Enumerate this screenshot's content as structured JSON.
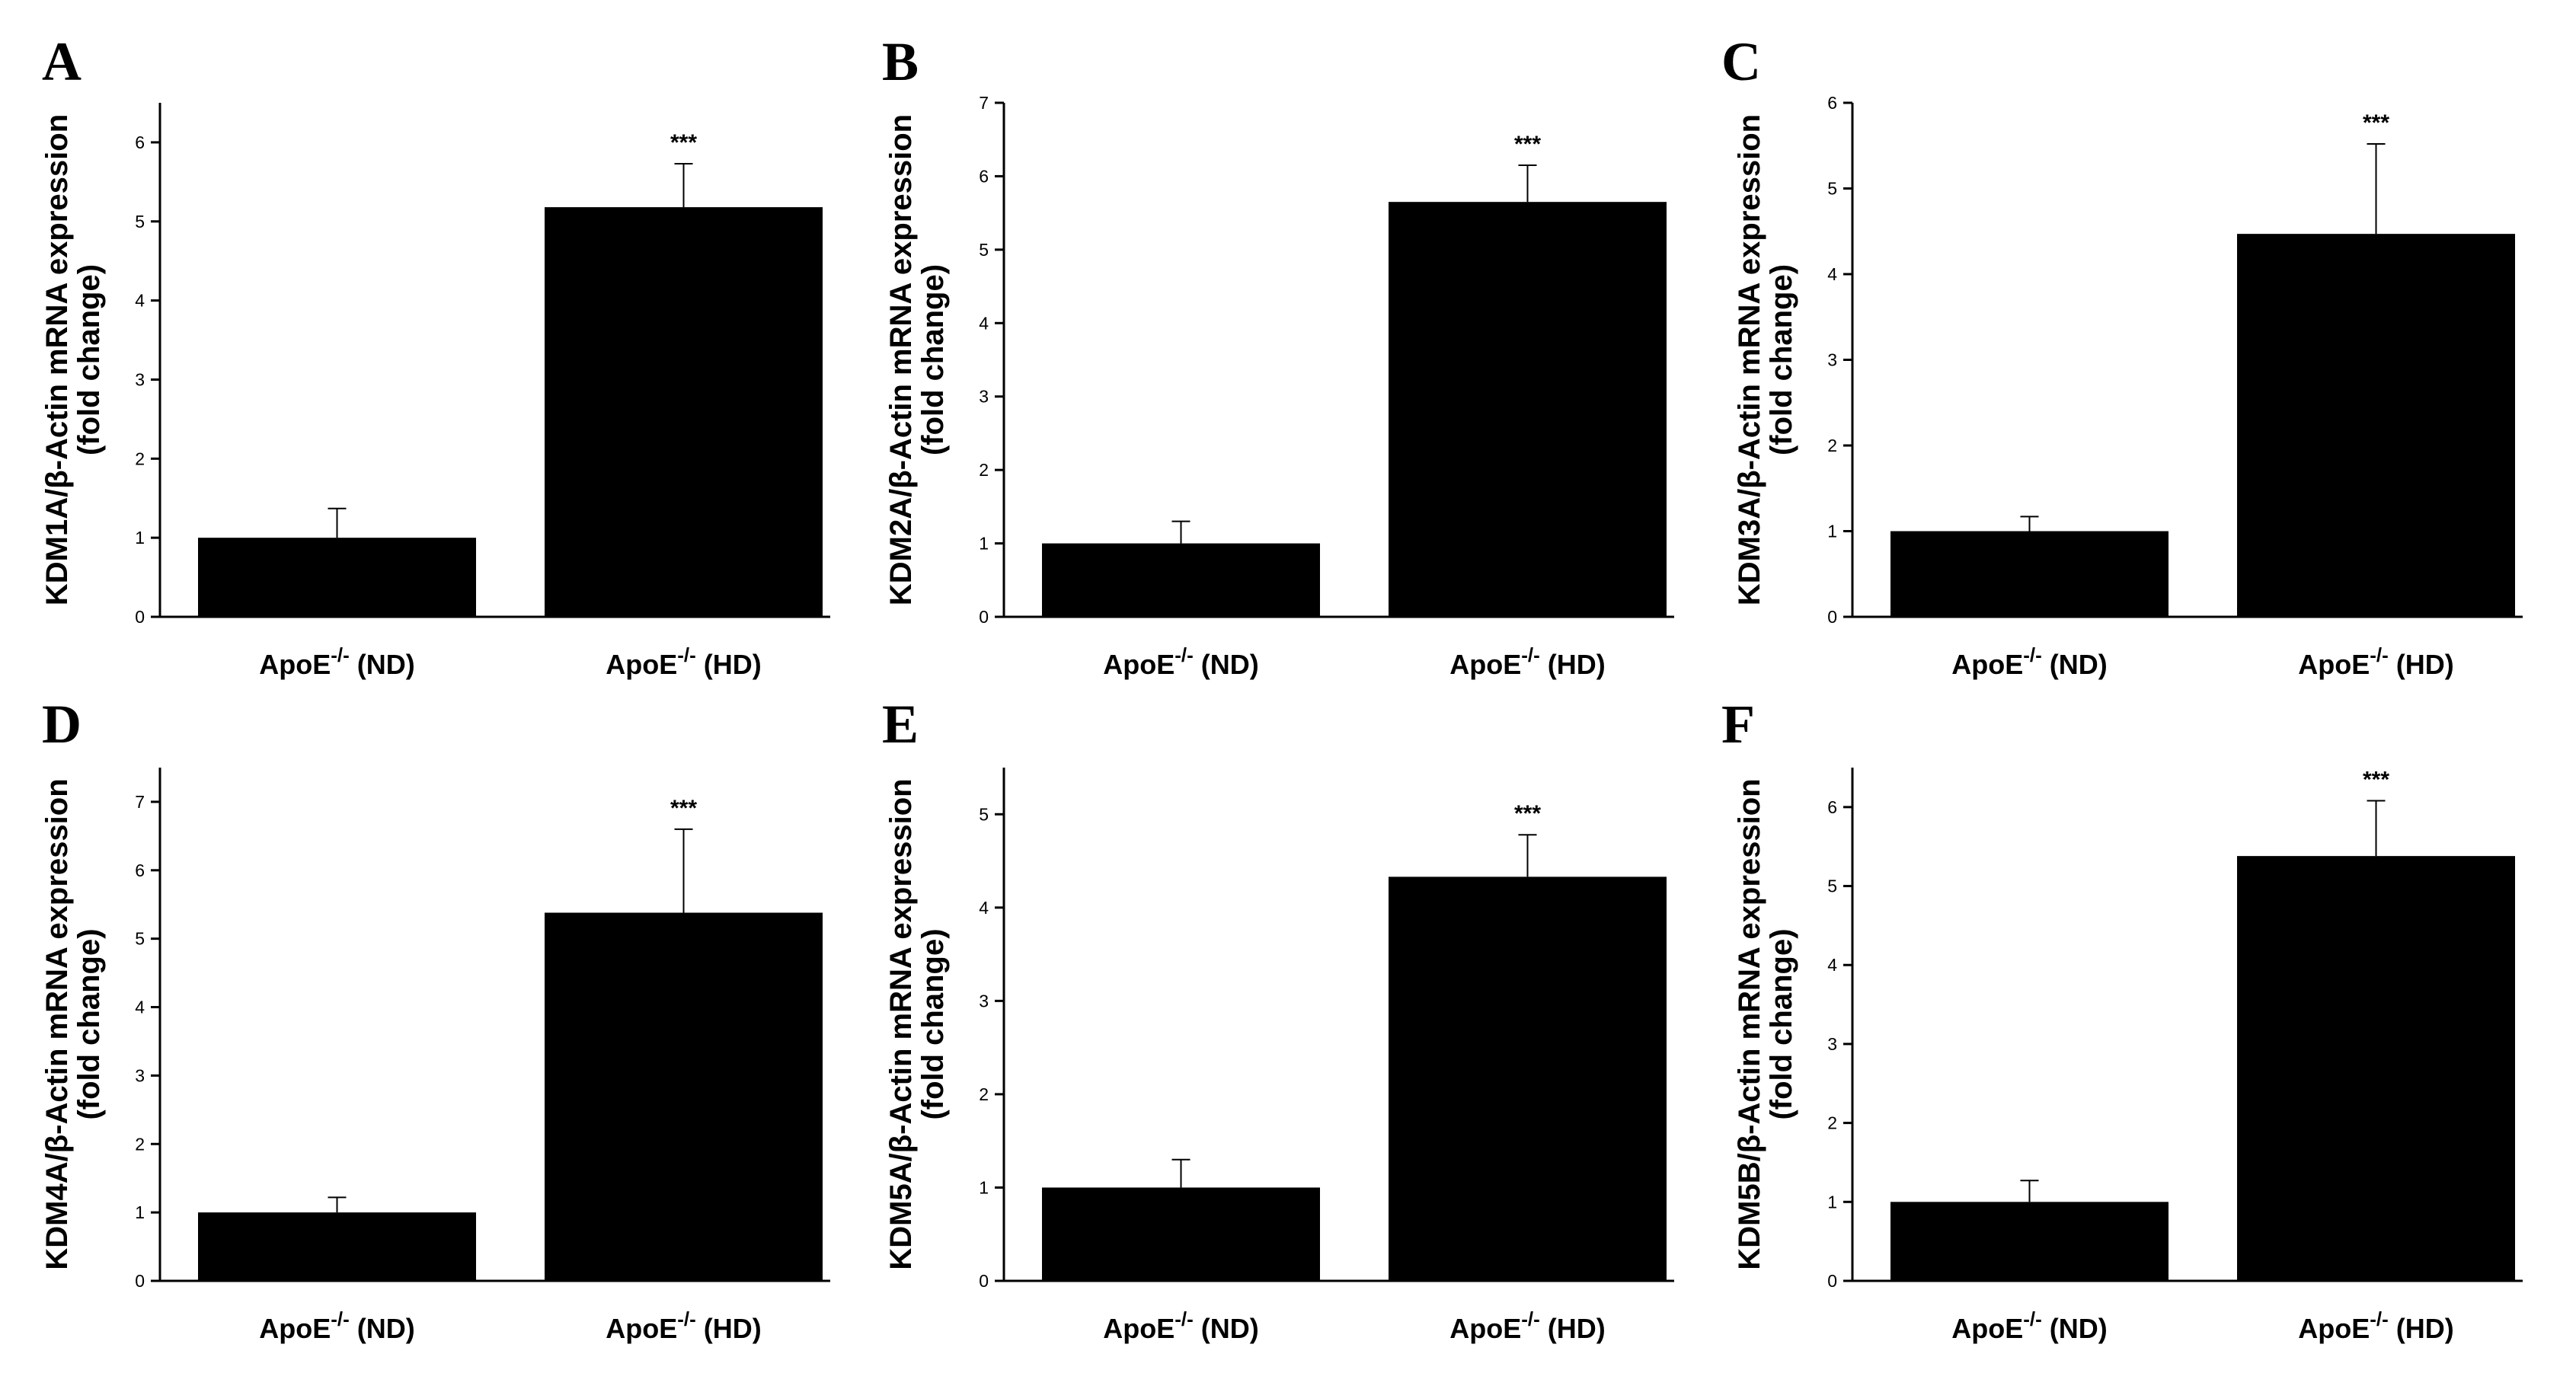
{
  "figure": {
    "colors": {
      "bar": "#000000",
      "axis": "#000000",
      "background": "#ffffff"
    }
  },
  "chart_data": [
    {
      "panel": "A",
      "type": "bar",
      "ylabel_line1": "KDM1A/β-Actin mRNA expression",
      "ylabel_line2": "(fold change)",
      "categories": [
        {
          "base": "ApoE",
          "superscript": "-/-",
          "group": " (ND)"
        },
        {
          "base": "ApoE",
          "superscript": "-/-",
          "group": " (HD)"
        }
      ],
      "values": [
        1.0,
        5.18
      ],
      "errors": [
        0.37,
        0.55
      ],
      "significance": [
        "",
        "***"
      ],
      "ylim": [
        0,
        6.5
      ],
      "yticks": [
        0,
        1,
        2,
        3,
        4,
        5,
        6
      ]
    },
    {
      "panel": "B",
      "type": "bar",
      "ylabel_line1": "KDM2A/β-Actin mRNA expression",
      "ylabel_line2": "(fold change)",
      "categories": [
        {
          "base": "ApoE",
          "superscript": "-/-",
          "group": " (ND)"
        },
        {
          "base": "ApoE",
          "superscript": "-/-",
          "group": " (HD)"
        }
      ],
      "values": [
        1.0,
        5.65
      ],
      "errors": [
        0.3,
        0.5
      ],
      "significance": [
        "",
        "***"
      ],
      "ylim": [
        0,
        7
      ],
      "yticks": [
        0,
        1,
        2,
        3,
        4,
        5,
        6,
        7
      ]
    },
    {
      "panel": "C",
      "type": "bar",
      "ylabel_line1": "KDM3A/β-Actin mRNA expression",
      "ylabel_line2": "(fold change)",
      "categories": [
        {
          "base": "ApoE",
          "superscript": "-/-",
          "group": " (ND)"
        },
        {
          "base": "ApoE",
          "superscript": "-/-",
          "group": " (HD)"
        }
      ],
      "values": [
        1.0,
        4.47
      ],
      "errors": [
        0.17,
        1.05
      ],
      "significance": [
        "",
        "***"
      ],
      "ylim": [
        0,
        6
      ],
      "yticks": [
        0,
        1,
        2,
        3,
        4,
        5,
        6
      ]
    },
    {
      "panel": "D",
      "type": "bar",
      "ylabel_line1": "KDM4A/β-Actin mRNA expression",
      "ylabel_line2": "(fold change)",
      "categories": [
        {
          "base": "ApoE",
          "superscript": "-/-",
          "group": " (ND)"
        },
        {
          "base": "ApoE",
          "superscript": "-/-",
          "group": " (HD)"
        }
      ],
      "values": [
        1.0,
        5.38
      ],
      "errors": [
        0.22,
        1.22
      ],
      "significance": [
        "",
        "***"
      ],
      "ylim": [
        0,
        7.5
      ],
      "yticks": [
        0,
        1,
        2,
        3,
        4,
        5,
        6,
        7
      ]
    },
    {
      "panel": "E",
      "type": "bar",
      "ylabel_line1": "KDM5A/β-Actin mRNA expression",
      "ylabel_line2": "(fold change)",
      "categories": [
        {
          "base": "ApoE",
          "superscript": "-/-",
          "group": " (ND)"
        },
        {
          "base": "ApoE",
          "superscript": "-/-",
          "group": " (HD)"
        }
      ],
      "values": [
        1.0,
        4.33
      ],
      "errors": [
        0.3,
        0.45
      ],
      "significance": [
        "",
        "***"
      ],
      "ylim": [
        0,
        5.5
      ],
      "yticks": [
        0,
        1,
        2,
        3,
        4,
        5
      ]
    },
    {
      "panel": "F",
      "type": "bar",
      "ylabel_line1": "KDM5B/β-Actin mRNA expression",
      "ylabel_line2": "(fold change)",
      "categories": [
        {
          "base": "ApoE",
          "superscript": "-/-",
          "group": " (ND)"
        },
        {
          "base": "ApoE",
          "superscript": "-/-",
          "group": " (HD)"
        }
      ],
      "values": [
        1.0,
        5.38
      ],
      "errors": [
        0.27,
        0.7
      ],
      "significance": [
        "",
        "***"
      ],
      "ylim": [
        0,
        6.5
      ],
      "yticks": [
        0,
        1,
        2,
        3,
        4,
        5,
        6
      ]
    }
  ]
}
